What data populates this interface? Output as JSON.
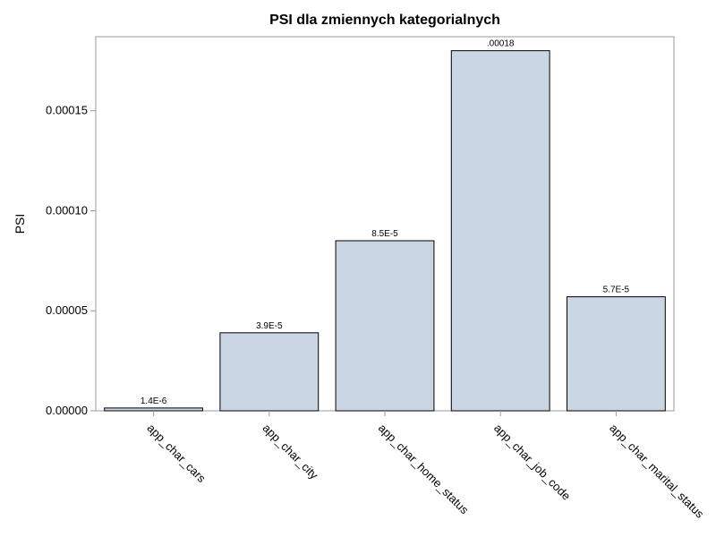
{
  "chart_data": {
    "type": "bar",
    "title": "PSI dla zmiennych kategorialnych",
    "xlabel": "",
    "ylabel": "PSI",
    "ylim": [
      0,
      0.000187
    ],
    "yticks": [
      0,
      5e-05,
      0.0001,
      0.00015
    ],
    "ytick_labels": [
      "0.00000",
      "0.00005",
      "0.00010",
      "0.00015"
    ],
    "categories": [
      "app_char_cars",
      "app_char_city",
      "app_char_home_status",
      "app_char_job_code",
      "app_char_marital_status"
    ],
    "values": [
      1.4e-06,
      3.9e-05,
      8.5e-05,
      0.00018,
      5.7e-05
    ],
    "data_labels": [
      "1.4E-6",
      "3.9E-5",
      "8.5E-5",
      ".00018",
      "5.7E-5"
    ],
    "bar_color": "#cbd6e5",
    "bar_edge_color": "#000000",
    "frame_color": "#9a9a9a",
    "grid": false,
    "legend": "none"
  }
}
